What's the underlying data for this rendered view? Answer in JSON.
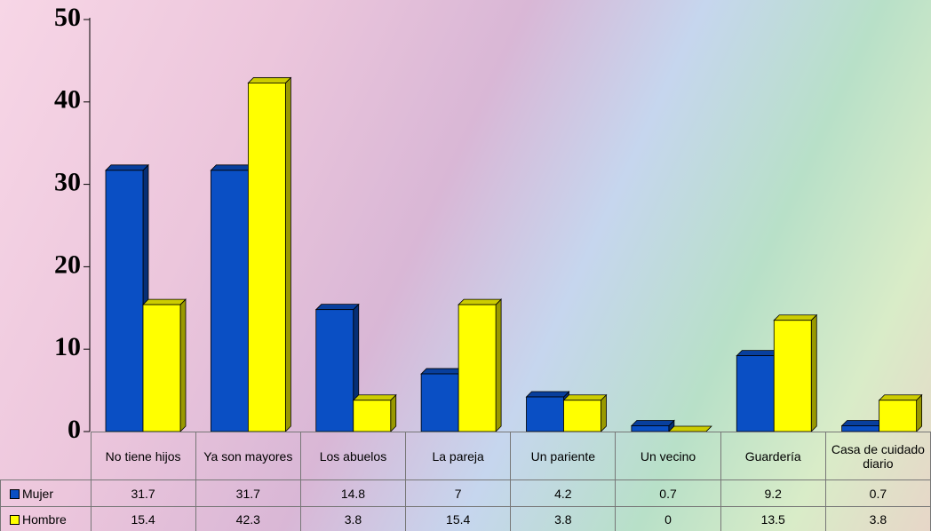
{
  "chart_data": {
    "type": "bar",
    "categories": [
      "No tiene hijos",
      "Ya son mayores",
      "Los abuelos",
      "La pareja",
      "Un pariente",
      "Un vecino",
      "Guardería",
      "Casa de cuidado diario"
    ],
    "series": [
      {
        "name": "Mujer",
        "color": "#0a4fc4",
        "values": [
          31.7,
          31.7,
          14.8,
          7,
          4.2,
          0.7,
          9.2,
          0.7
        ]
      },
      {
        "name": "Hombre",
        "color": "#ffff00",
        "values": [
          15.4,
          42.3,
          3.8,
          15.4,
          3.8,
          0,
          13.5,
          3.8
        ]
      }
    ],
    "ylim": [
      0,
      50
    ],
    "yticks": [
      0,
      10,
      20,
      30,
      40,
      50
    ]
  }
}
